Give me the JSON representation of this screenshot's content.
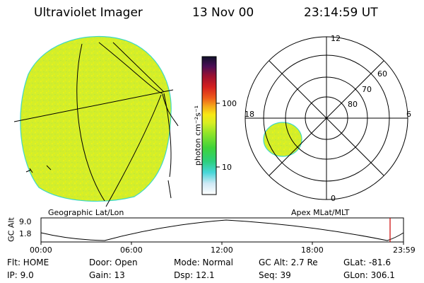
{
  "header": {
    "instrument": "Ultraviolet Imager",
    "date": "13 Nov 00",
    "time": "23:14:59 UT"
  },
  "left_panel": {
    "caption": "Geographic Lat/Lon"
  },
  "colorbar": {
    "unit_label": "photon cm⁻²s⁻¹",
    "tick_labels": [
      "100",
      "10"
    ],
    "scale": "log"
  },
  "right_panel": {
    "caption": "Apex MLat/MLT",
    "mlt_labels": {
      "top": "12",
      "left": "18",
      "right": "6",
      "bottom": "0"
    },
    "lat_labels": [
      "60",
      "70",
      "80"
    ]
  },
  "altitude_strip": {
    "axis_title": "GC Alt",
    "y_ticks": [
      "9.0",
      "1.8"
    ],
    "time_ticks": [
      "00:00",
      "06:00",
      "12:00",
      "18:00",
      "23:59"
    ],
    "current_time_marker": "23:14:59"
  },
  "status": {
    "row1": {
      "flt": "Flt:  HOME",
      "door": "Door:  Open",
      "mode": "Mode:  Normal",
      "gc_alt": "GC Alt:  2.7 Re",
      "glat": "GLat:  -81.6"
    },
    "row2": {
      "ip": "IP:  9.0",
      "gain": "Gain:  13",
      "dsp": "Dsp:    12.1",
      "seq": "Seq:  39",
      "glon": "GLon:  306.1"
    }
  },
  "colors": {
    "emission_fill": "#d4ee2a",
    "emission_edge": "#3fd9c6",
    "strip_marker": "#cc0000"
  }
}
